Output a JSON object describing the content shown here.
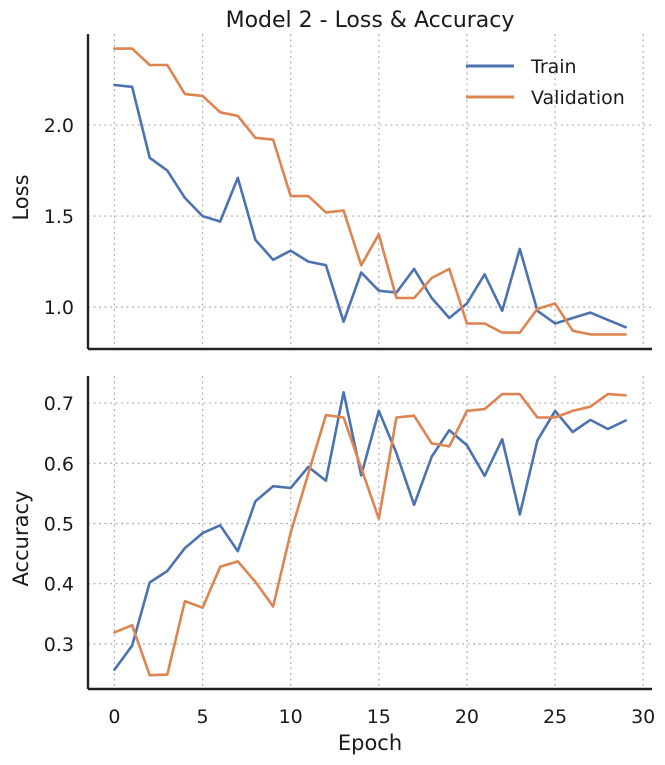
{
  "chart_data": [
    {
      "type": "line",
      "title": "Model 2 - Loss & Accuracy",
      "xlabel": "",
      "ylabel": "Loss",
      "xlim": [
        -1.5,
        30.5
      ],
      "ylim": [
        0.77,
        2.5
      ],
      "xticks": [
        0,
        5,
        10,
        15,
        20,
        25,
        30
      ],
      "yticks": [
        1.0,
        1.5,
        2.0
      ],
      "ytick_labels": [
        "1.0",
        "1.5",
        "2.0"
      ],
      "grid": true,
      "legend": {
        "position": "top-right",
        "entries": [
          "Train",
          "Validation"
        ]
      },
      "x": [
        0,
        1,
        2,
        3,
        4,
        5,
        6,
        7,
        8,
        9,
        10,
        11,
        12,
        13,
        14,
        15,
        16,
        17,
        18,
        19,
        20,
        21,
        22,
        23,
        24,
        25,
        26,
        27,
        28,
        29
      ],
      "series": [
        {
          "name": "Train",
          "color": "#4c72b0",
          "values": [
            2.22,
            2.21,
            1.82,
            1.75,
            1.6,
            1.5,
            1.47,
            1.71,
            1.37,
            1.26,
            1.31,
            1.25,
            1.23,
            0.92,
            1.19,
            1.09,
            1.08,
            1.21,
            1.05,
            0.94,
            1.02,
            1.18,
            0.98,
            1.32,
            0.98,
            0.91,
            0.94,
            0.97,
            0.93,
            0.89
          ]
        },
        {
          "name": "Validation",
          "color": "#dd8452",
          "values": [
            2.42,
            2.42,
            2.33,
            2.33,
            2.17,
            2.16,
            2.07,
            2.05,
            1.93,
            1.92,
            1.61,
            1.61,
            1.52,
            1.53,
            1.23,
            1.4,
            1.05,
            1.05,
            1.16,
            1.21,
            0.91,
            0.91,
            0.86,
            0.86,
            0.99,
            1.02,
            0.87,
            0.85,
            0.85,
            0.85
          ]
        }
      ]
    },
    {
      "type": "line",
      "title": "",
      "xlabel": "Epoch",
      "ylabel": "Accuracy",
      "xlim": [
        -1.5,
        30.5
      ],
      "ylim": [
        0.225,
        0.745
      ],
      "xticks": [
        0,
        5,
        10,
        15,
        20,
        25,
        30
      ],
      "xtick_labels": [
        "0",
        "5",
        "10",
        "15",
        "20",
        "25",
        "30"
      ],
      "yticks": [
        0.3,
        0.4,
        0.5,
        0.6,
        0.7
      ],
      "ytick_labels": [
        "0.3",
        "0.4",
        "0.5",
        "0.6",
        "0.7"
      ],
      "grid": true,
      "x": [
        0,
        1,
        2,
        3,
        4,
        5,
        6,
        7,
        8,
        9,
        10,
        11,
        12,
        13,
        14,
        15,
        16,
        17,
        18,
        19,
        20,
        21,
        22,
        23,
        24,
        25,
        26,
        27,
        28,
        29
      ],
      "series": [
        {
          "name": "Train",
          "color": "#4c72b0",
          "values": [
            0.257,
            0.297,
            0.402,
            0.421,
            0.459,
            0.484,
            0.497,
            0.454,
            0.537,
            0.562,
            0.559,
            0.594,
            0.571,
            0.718,
            0.58,
            0.687,
            0.617,
            0.531,
            0.611,
            0.655,
            0.63,
            0.579,
            0.64,
            0.515,
            0.638,
            0.687,
            0.652,
            0.672,
            0.657,
            0.671
          ]
        },
        {
          "name": "Validation",
          "color": "#dd8452",
          "values": [
            0.319,
            0.331,
            0.248,
            0.249,
            0.371,
            0.36,
            0.428,
            0.437,
            0.403,
            0.362,
            0.485,
            0.583,
            0.68,
            0.676,
            0.592,
            0.508,
            0.676,
            0.679,
            0.633,
            0.628,
            0.687,
            0.69,
            0.715,
            0.715,
            0.676,
            0.676,
            0.687,
            0.694,
            0.715,
            0.713
          ]
        }
      ]
    }
  ]
}
